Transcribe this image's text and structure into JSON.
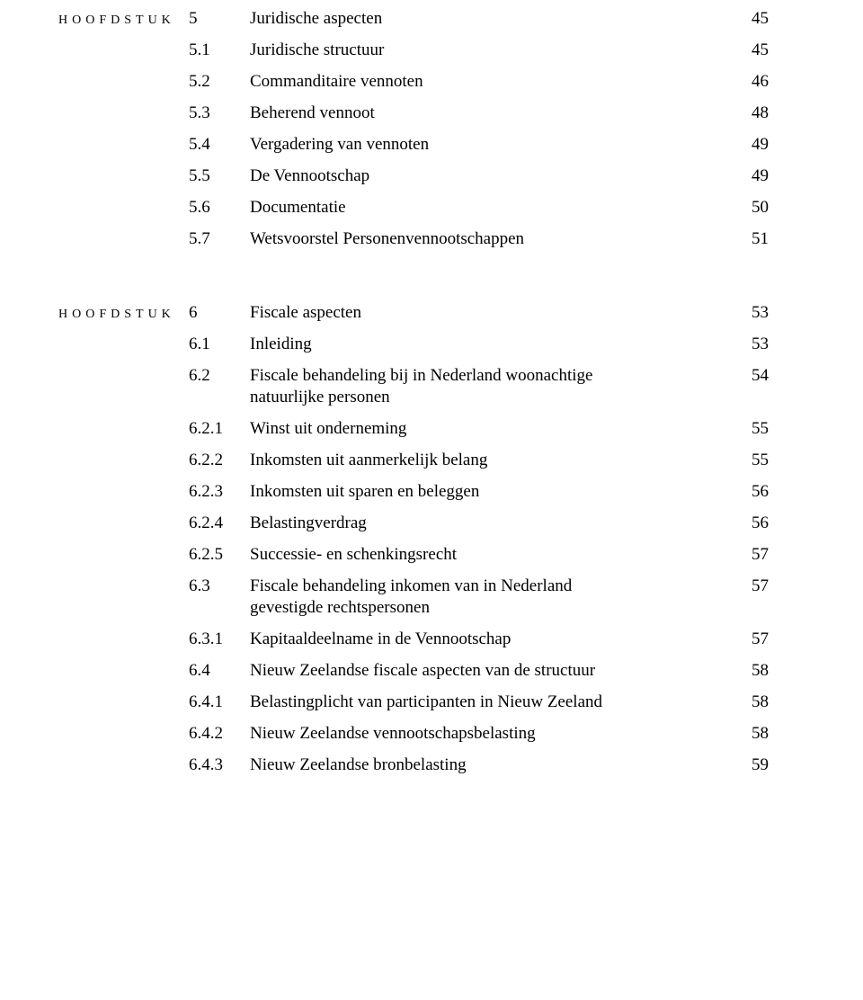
{
  "chapter_label": "HOOFDSTUK",
  "blocks": [
    {
      "rows": [
        {
          "is_chapter": true,
          "num": "5",
          "title": "Juridische aspecten",
          "page": "45"
        },
        {
          "is_chapter": false,
          "num": "5.1",
          "title": "Juridische structuur",
          "page": "45"
        },
        {
          "is_chapter": false,
          "num": "5.2",
          "title": "Commanditaire vennoten",
          "page": "46"
        },
        {
          "is_chapter": false,
          "num": "5.3",
          "title": "Beherend vennoot",
          "page": "48"
        },
        {
          "is_chapter": false,
          "num": "5.4",
          "title": "Vergadering van vennoten",
          "page": "49"
        },
        {
          "is_chapter": false,
          "num": "5.5",
          "title": "De Vennootschap",
          "page": "49"
        },
        {
          "is_chapter": false,
          "num": "5.6",
          "title": "Documentatie",
          "page": "50"
        },
        {
          "is_chapter": false,
          "num": "5.7",
          "title": "Wetsvoorstel Personenvennootschappen",
          "page": "51"
        }
      ]
    },
    {
      "rows": [
        {
          "is_chapter": true,
          "num": "6",
          "title": "Fiscale aspecten",
          "page": "53"
        },
        {
          "is_chapter": false,
          "num": "6.1",
          "title": "Inleiding",
          "page": "53"
        },
        {
          "is_chapter": false,
          "num": "6.2",
          "title": "Fiscale behandeling bij in Nederland woonachtige",
          "page": "54",
          "cont": "natuurlijke personen"
        },
        {
          "is_chapter": false,
          "num": "6.2.1",
          "title": "Winst uit onderneming",
          "page": "55"
        },
        {
          "is_chapter": false,
          "num": "6.2.2",
          "title": "Inkomsten uit aanmerkelijk belang",
          "page": "55"
        },
        {
          "is_chapter": false,
          "num": "6.2.3",
          "title": "Inkomsten uit sparen en beleggen",
          "page": "56"
        },
        {
          "is_chapter": false,
          "num": "6.2.4",
          "title": "Belastingverdrag",
          "page": "56"
        },
        {
          "is_chapter": false,
          "num": "6.2.5",
          "title": "Successie- en schenkingsrecht",
          "page": "57"
        },
        {
          "is_chapter": false,
          "num": "6.3",
          "title": "Fiscale behandeling inkomen van in Nederland",
          "page": "57",
          "cont": "gevestigde rechtspersonen"
        },
        {
          "is_chapter": false,
          "num": "6.3.1",
          "title": "Kapitaaldeelname in de Vennootschap",
          "page": "57"
        },
        {
          "is_chapter": false,
          "num": "6.4",
          "title": "Nieuw Zeelandse fiscale aspecten van de structuur",
          "page": "58"
        },
        {
          "is_chapter": false,
          "num": "6.4.1",
          "title": "Belastingplicht van participanten in Nieuw Zeeland",
          "page": "58"
        },
        {
          "is_chapter": false,
          "num": "6.4.2",
          "title": "Nieuw Zeelandse vennootschapsbelasting",
          "page": "58"
        },
        {
          "is_chapter": false,
          "num": "6.4.3",
          "title": "Nieuw Zeelandse bronbelasting",
          "page": "59"
        }
      ]
    }
  ]
}
